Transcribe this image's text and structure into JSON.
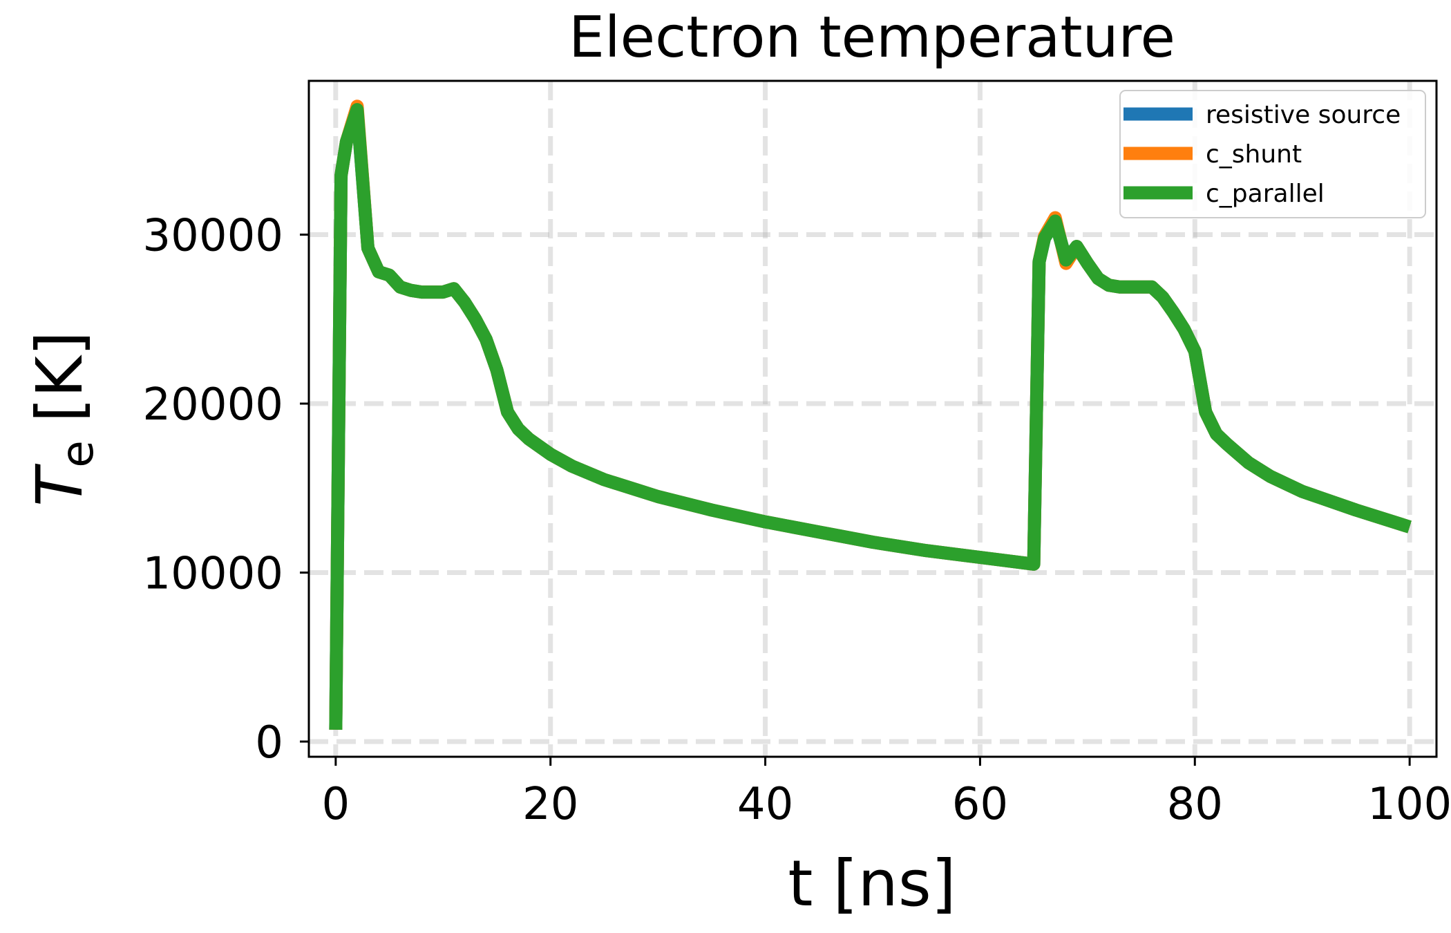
{
  "chart_data": {
    "type": "line",
    "title": "Electron temperature",
    "xlabel": "t [ns]",
    "ylabel": {
      "main": "T",
      "sub": "e",
      "unit": "[K]"
    },
    "xlim": [
      -2.5,
      102.5
    ],
    "ylim": [
      -900,
      39100
    ],
    "xticks": [
      0,
      20,
      40,
      60,
      80,
      100
    ],
    "xtick_labels": [
      "0",
      "20",
      "40",
      "60",
      "80",
      "100"
    ],
    "yticks": [
      0,
      10000,
      20000,
      30000
    ],
    "ytick_labels": [
      "0",
      "10000",
      "20000",
      "30000"
    ],
    "grid": true,
    "legend_position": "top-right",
    "series": [
      {
        "name": "resistive source",
        "color": "#1f77b4",
        "x": [
          0,
          0.5,
          1,
          2,
          3,
          4,
          5,
          6,
          7,
          8,
          9,
          10,
          11,
          12,
          13,
          14,
          15,
          16,
          17,
          18,
          20,
          22,
          25,
          28,
          30,
          35,
          40,
          45,
          50,
          55,
          60,
          65,
          65.5,
          66,
          67,
          68,
          69,
          70,
          71,
          72,
          73,
          74,
          75,
          76,
          77,
          78,
          79,
          80,
          81,
          82,
          83,
          85,
          87,
          90,
          95,
          100
        ],
        "y": [
          700,
          33500,
          35500,
          37400,
          29200,
          27800,
          27600,
          26900,
          26700,
          26600,
          26600,
          26600,
          26800,
          26000,
          25000,
          23800,
          22000,
          19500,
          18500,
          17900,
          17000,
          16300,
          15500,
          14900,
          14500,
          13700,
          13000,
          12400,
          11800,
          11300,
          10900,
          10500,
          28400,
          29800,
          30800,
          28500,
          29300,
          28300,
          27400,
          27000,
          26900,
          26900,
          26900,
          26900,
          26300,
          25400,
          24400,
          23100,
          19500,
          18200,
          17600,
          16500,
          15700,
          14800,
          13700,
          12700
        ]
      },
      {
        "name": "c_shunt",
        "color": "#ff7f0e",
        "x": [
          0,
          0.5,
          1,
          2,
          3,
          4,
          5,
          6,
          7,
          8,
          9,
          10,
          11,
          12,
          13,
          14,
          15,
          16,
          17,
          18,
          20,
          22,
          25,
          28,
          30,
          35,
          40,
          45,
          50,
          55,
          60,
          65,
          65.5,
          66,
          67,
          68,
          69,
          70,
          71,
          72,
          73,
          74,
          75,
          76,
          77,
          78,
          79,
          80,
          81,
          82,
          83,
          85,
          87,
          90,
          95,
          100
        ],
        "y": [
          700,
          33500,
          35500,
          37600,
          29200,
          27800,
          27600,
          26900,
          26700,
          26600,
          26600,
          26600,
          26800,
          26000,
          25000,
          23800,
          22000,
          19500,
          18500,
          17900,
          17000,
          16300,
          15500,
          14900,
          14500,
          13700,
          13000,
          12400,
          11800,
          11300,
          10900,
          10500,
          28400,
          29900,
          31000,
          28300,
          29300,
          28300,
          27400,
          27000,
          26900,
          26900,
          26900,
          26900,
          26300,
          25400,
          24400,
          23100,
          19500,
          18200,
          17600,
          16500,
          15700,
          14800,
          13700,
          12700
        ]
      },
      {
        "name": "c_parallel",
        "color": "#2ca02c",
        "x": [
          0,
          0.5,
          1,
          2,
          3,
          4,
          5,
          6,
          7,
          8,
          9,
          10,
          11,
          12,
          13,
          14,
          15,
          16,
          17,
          18,
          20,
          22,
          25,
          28,
          30,
          35,
          40,
          45,
          50,
          55,
          60,
          65,
          65.5,
          66,
          67,
          68,
          69,
          70,
          71,
          72,
          73,
          74,
          75,
          76,
          77,
          78,
          79,
          80,
          81,
          82,
          83,
          85,
          87,
          90,
          95,
          100
        ],
        "y": [
          700,
          33500,
          35500,
          37400,
          29200,
          27800,
          27600,
          26900,
          26700,
          26600,
          26600,
          26600,
          26800,
          26000,
          25000,
          23800,
          22000,
          19500,
          18500,
          17900,
          17000,
          16300,
          15500,
          14900,
          14500,
          13700,
          13000,
          12400,
          11800,
          11300,
          10900,
          10500,
          28400,
          29800,
          30800,
          28500,
          29300,
          28300,
          27400,
          27000,
          26900,
          26900,
          26900,
          26900,
          26300,
          25400,
          24400,
          23100,
          19500,
          18200,
          17600,
          16500,
          15700,
          14800,
          13700,
          12700
        ]
      }
    ]
  }
}
